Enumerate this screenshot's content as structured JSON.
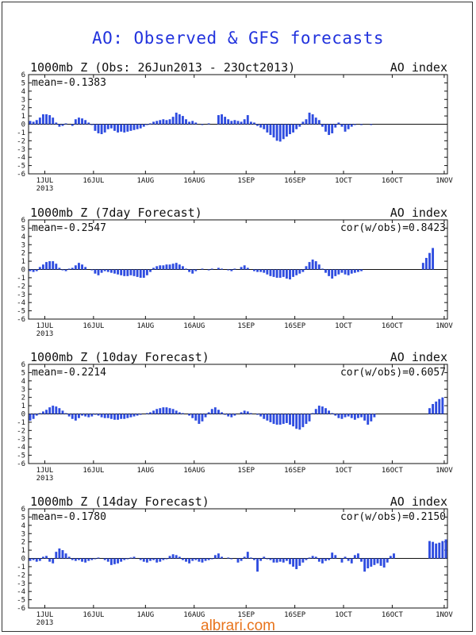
{
  "title": "AO: Observed & GFS forecasts",
  "watermark": "albrari.com",
  "chart_data": [
    {
      "type": "bar",
      "title": "1000mb Z (Obs: 26Jun2013 - 23Oct2013)",
      "index_label": "AO index",
      "mean_label": "mean=-0.1383",
      "cor_label": "",
      "ylim": [
        -6,
        6
      ],
      "yticks": [
        6,
        5,
        4,
        3,
        2,
        1,
        0,
        -1,
        -2,
        -3,
        -4,
        -5,
        -6
      ],
      "xlim": [
        0,
        129
      ],
      "xticks": [
        {
          "x": 5,
          "label": "1JUL",
          "sub": "2013"
        },
        {
          "x": 20,
          "label": "16JUL"
        },
        {
          "x": 36,
          "label": "1AUG"
        },
        {
          "x": 51,
          "label": "16AUG"
        },
        {
          "x": 67,
          "label": "1SEP"
        },
        {
          "x": 82,
          "label": "16SEP"
        },
        {
          "x": 97,
          "label": "1OCT"
        },
        {
          "x": 112,
          "label": "16OCT"
        },
        {
          "x": 128,
          "label": "1NOV"
        }
      ],
      "x": [
        0,
        1,
        2,
        3,
        4,
        5,
        6,
        7,
        8,
        9,
        10,
        11,
        12,
        13,
        14,
        15,
        16,
        17,
        18,
        19,
        20,
        21,
        22,
        23,
        24,
        25,
        26,
        27,
        28,
        29,
        30,
        31,
        32,
        33,
        34,
        35,
        36,
        37,
        38,
        39,
        40,
        41,
        42,
        43,
        44,
        45,
        46,
        47,
        48,
        49,
        50,
        51,
        52,
        53,
        54,
        55,
        56,
        57,
        58,
        59,
        60,
        61,
        62,
        63,
        64,
        65,
        66,
        67,
        68,
        69,
        70,
        71,
        72,
        73,
        74,
        75,
        76,
        77,
        78,
        79,
        80,
        81,
        82,
        83,
        84,
        85,
        86,
        87,
        88,
        89,
        90,
        91,
        92,
        93,
        94,
        95,
        96,
        97,
        98,
        99,
        100,
        101,
        102,
        103,
        104,
        105,
        106,
        107,
        108,
        109,
        110,
        111,
        112,
        113,
        114,
        115,
        116,
        117
      ],
      "values": [
        0.4,
        0.3,
        0.5,
        0.8,
        1.2,
        1.2,
        1.1,
        0.8,
        0.2,
        -0.3,
        -0.2,
        0.1,
        0.0,
        -0.2,
        0.6,
        0.8,
        0.7,
        0.5,
        0.2,
        -0.1,
        -0.8,
        -1.1,
        -1.2,
        -1.0,
        -0.6,
        -0.5,
        -0.8,
        -1.0,
        -0.9,
        -1.0,
        -0.9,
        -0.8,
        -0.7,
        -0.6,
        -0.5,
        -0.3,
        -0.1,
        0.1,
        0.3,
        0.4,
        0.5,
        0.6,
        0.5,
        0.6,
        0.9,
        1.4,
        1.2,
        1.0,
        0.6,
        0.3,
        0.4,
        0.2,
        0.0,
        -0.1,
        0.0,
        0.1,
        0.0,
        0.0,
        1.1,
        1.2,
        0.9,
        0.6,
        0.4,
        0.5,
        0.4,
        0.3,
        0.6,
        1.1,
        0.3,
        0.2,
        -0.2,
        -0.4,
        -0.6,
        -1.0,
        -1.3,
        -1.6,
        -2.0,
        -2.1,
        -1.8,
        -1.5,
        -1.2,
        -1.0,
        -0.6,
        -0.3,
        0.3,
        0.6,
        1.4,
        1.2,
        0.8,
        0.5,
        -0.3,
        -0.9,
        -1.3,
        -1.1,
        -0.4,
        0.2,
        -0.3,
        -0.9,
        -0.6,
        -0.3,
        -0.1,
        0.0,
        -0.1,
        0.0,
        0.0,
        -0.1,
        0.0,
        0.0,
        0.0,
        0.0,
        0.0,
        0.0,
        0.0,
        0.0,
        0.0,
        0.0,
        0.0,
        0.0
      ]
    },
    {
      "type": "bar",
      "title": "1000mb Z (7day Forecast)",
      "index_label": "AO index",
      "mean_label": "mean=-0.2547",
      "cor_label": "cor(w/obs)=0.8423",
      "ylim": [
        -6,
        6
      ],
      "yticks": [
        6,
        5,
        4,
        3,
        2,
        1,
        0,
        -1,
        -2,
        -3,
        -4,
        -5,
        -6
      ],
      "xlim": [
        0,
        129
      ],
      "xticks": [
        {
          "x": 5,
          "label": "1JUL",
          "sub": "2013"
        },
        {
          "x": 20,
          "label": "16JUL"
        },
        {
          "x": 36,
          "label": "1AUG"
        },
        {
          "x": 51,
          "label": "16AUG"
        },
        {
          "x": 67,
          "label": "1SEP"
        },
        {
          "x": 82,
          "label": "16SEP"
        },
        {
          "x": 97,
          "label": "1OCT"
        },
        {
          "x": 112,
          "label": "16OCT"
        },
        {
          "x": 128,
          "label": "1NOV"
        }
      ],
      "x": [
        0,
        1,
        2,
        3,
        4,
        5,
        6,
        7,
        8,
        9,
        10,
        11,
        12,
        13,
        14,
        15,
        16,
        17,
        18,
        19,
        20,
        21,
        22,
        23,
        24,
        25,
        26,
        27,
        28,
        29,
        30,
        31,
        32,
        33,
        34,
        35,
        36,
        37,
        38,
        39,
        40,
        41,
        42,
        43,
        44,
        45,
        46,
        47,
        48,
        49,
        50,
        51,
        52,
        53,
        54,
        55,
        56,
        57,
        58,
        59,
        60,
        61,
        62,
        63,
        64,
        65,
        66,
        67,
        68,
        69,
        70,
        71,
        72,
        73,
        74,
        75,
        76,
        77,
        78,
        79,
        80,
        81,
        82,
        83,
        84,
        85,
        86,
        87,
        88,
        89,
        90,
        91,
        92,
        93,
        94,
        95,
        96,
        97,
        98,
        99,
        100,
        101,
        102,
        103,
        104,
        105,
        106,
        107,
        108,
        109,
        110,
        111,
        112,
        113,
        114,
        115,
        116,
        117,
        118,
        119,
        120,
        121,
        122,
        123,
        124
      ],
      "values": [
        -0.2,
        -0.3,
        -0.2,
        0.3,
        0.6,
        0.9,
        1.0,
        1.0,
        0.7,
        0.2,
        -0.1,
        -0.2,
        0.1,
        0.2,
        0.5,
        0.8,
        0.6,
        0.3,
        0.0,
        -0.1,
        -0.5,
        -0.7,
        -0.4,
        -0.2,
        -0.3,
        -0.4,
        -0.5,
        -0.6,
        -0.7,
        -0.8,
        -0.8,
        -0.7,
        -0.8,
        -0.9,
        -1.0,
        -1.0,
        -0.7,
        -0.3,
        0.2,
        0.4,
        0.5,
        0.5,
        0.6,
        0.6,
        0.7,
        0.8,
        0.6,
        0.4,
        0.1,
        -0.3,
        -0.5,
        -0.2,
        0.0,
        0.1,
        0.0,
        -0.1,
        0.1,
        0.0,
        0.2,
        0.1,
        0.0,
        -0.1,
        -0.2,
        0.1,
        0.0,
        0.3,
        0.5,
        0.2,
        0.0,
        -0.2,
        -0.3,
        -0.3,
        -0.4,
        -0.6,
        -0.8,
        -0.9,
        -1.0,
        -1.0,
        -0.9,
        -1.1,
        -1.2,
        -0.9,
        -0.7,
        -0.5,
        -0.3,
        0.4,
        0.9,
        1.2,
        1.0,
        0.6,
        0.1,
        -0.4,
        -0.8,
        -1.1,
        -0.8,
        -0.6,
        -0.4,
        -0.6,
        -0.7,
        -0.5,
        -0.4,
        -0.3,
        -0.2,
        0.0,
        0.0,
        0.0,
        0.0,
        0.0,
        0.0,
        0.0,
        0.0,
        0.0,
        0.0,
        0.0,
        0.0,
        0.0,
        0.0,
        0.0,
        0.0,
        0.0,
        0.0,
        0.8,
        1.4,
        2.0,
        2.6
      ]
    },
    {
      "type": "bar",
      "title": "1000mb Z (10day Forecast)",
      "index_label": "AO index",
      "mean_label": "mean=-0.2214",
      "cor_label": "cor(w/obs)=0.6057",
      "ylim": [
        -6,
        6
      ],
      "yticks": [
        6,
        5,
        4,
        3,
        2,
        1,
        0,
        -1,
        -2,
        -3,
        -4,
        -5,
        -6
      ],
      "xlim": [
        0,
        129
      ],
      "xticks": [
        {
          "x": 5,
          "label": "1JUL",
          "sub": "2013"
        },
        {
          "x": 20,
          "label": "16JUL"
        },
        {
          "x": 36,
          "label": "1AUG"
        },
        {
          "x": 51,
          "label": "16AUG"
        },
        {
          "x": 67,
          "label": "1SEP"
        },
        {
          "x": 82,
          "label": "16SEP"
        },
        {
          "x": 97,
          "label": "1OCT"
        },
        {
          "x": 112,
          "label": "16OCT"
        },
        {
          "x": 128,
          "label": "1NOV"
        }
      ],
      "x": [
        0,
        1,
        2,
        3,
        4,
        5,
        6,
        7,
        8,
        9,
        10,
        11,
        12,
        13,
        14,
        15,
        16,
        17,
        18,
        19,
        20,
        21,
        22,
        23,
        24,
        25,
        26,
        27,
        28,
        29,
        30,
        31,
        32,
        33,
        34,
        35,
        36,
        37,
        38,
        39,
        40,
        41,
        42,
        43,
        44,
        45,
        46,
        47,
        48,
        49,
        50,
        51,
        52,
        53,
        54,
        55,
        56,
        57,
        58,
        59,
        60,
        61,
        62,
        63,
        64,
        65,
        66,
        67,
        68,
        69,
        70,
        71,
        72,
        73,
        74,
        75,
        76,
        77,
        78,
        79,
        80,
        81,
        82,
        83,
        84,
        85,
        86,
        87,
        88,
        89,
        90,
        91,
        92,
        93,
        94,
        95,
        96,
        97,
        98,
        99,
        100,
        101,
        102,
        103,
        104,
        105,
        106,
        107,
        108,
        109,
        110,
        111,
        112,
        113,
        114,
        115,
        116,
        117,
        118,
        119,
        120,
        121,
        122,
        123,
        124,
        125,
        126,
        127
      ],
      "values": [
        -0.8,
        -0.6,
        -0.2,
        0.1,
        0.3,
        0.5,
        0.8,
        1.0,
        0.9,
        0.7,
        0.4,
        0.1,
        -0.3,
        -0.6,
        -0.8,
        -0.5,
        -0.2,
        -0.3,
        -0.4,
        -0.3,
        -0.1,
        -0.2,
        -0.4,
        -0.5,
        -0.5,
        -0.6,
        -0.7,
        -0.7,
        -0.6,
        -0.6,
        -0.5,
        -0.4,
        -0.3,
        -0.2,
        -0.1,
        0.0,
        0.1,
        0.2,
        0.4,
        0.6,
        0.7,
        0.8,
        0.8,
        0.7,
        0.6,
        0.4,
        0.2,
        0.1,
        0.0,
        -0.2,
        -0.5,
        -0.8,
        -1.2,
        -0.9,
        -0.4,
        0.2,
        0.6,
        0.8,
        0.5,
        0.2,
        -0.1,
        -0.3,
        -0.4,
        -0.2,
        0.0,
        0.2,
        0.4,
        0.3,
        0.1,
        0.0,
        -0.1,
        -0.3,
        -0.6,
        -0.8,
        -1.0,
        -1.2,
        -1.3,
        -1.3,
        -1.2,
        -1.1,
        -1.3,
        -1.5,
        -1.8,
        -1.9,
        -1.6,
        -1.2,
        -0.9,
        0.1,
        0.6,
        1.0,
        0.9,
        0.7,
        0.4,
        0.1,
        -0.2,
        -0.5,
        -0.6,
        -0.4,
        -0.3,
        -0.5,
        -0.7,
        -0.5,
        -0.4,
        -0.8,
        -1.3,
        -0.9,
        -0.4,
        0.0,
        0.0,
        0.0,
        0.0,
        0.0,
        0.0,
        0.0,
        0.0,
        0.0,
        0.0,
        0.0,
        0.0,
        0.0,
        0.0,
        0.0,
        0.0,
        0.7,
        1.2,
        1.5,
        1.8,
        2.0
      ]
    },
    {
      "type": "bar",
      "title": "1000mb Z (14day Forecast)",
      "index_label": "AO index",
      "mean_label": "mean=-0.1780",
      "cor_label": "cor(w/obs)=0.2150",
      "ylim": [
        -6,
        6
      ],
      "yticks": [
        6,
        5,
        4,
        3,
        2,
        1,
        0,
        -1,
        -2,
        -3,
        -4,
        -5,
        -6
      ],
      "xlim": [
        0,
        129
      ],
      "xticks": [
        {
          "x": 5,
          "label": "1JUL",
          "sub": "2013"
        },
        {
          "x": 20,
          "label": "16JUL"
        },
        {
          "x": 36,
          "label": "1AUG"
        },
        {
          "x": 51,
          "label": "16AUG"
        },
        {
          "x": 67,
          "label": "1SEP"
        },
        {
          "x": 82,
          "label": "16SEP"
        },
        {
          "x": 97,
          "label": "1OCT"
        },
        {
          "x": 112,
          "label": "16OCT"
        },
        {
          "x": 128,
          "label": "1NOV"
        }
      ],
      "x": [
        0,
        1,
        2,
        3,
        4,
        5,
        6,
        7,
        8,
        9,
        10,
        11,
        12,
        13,
        14,
        15,
        16,
        17,
        18,
        19,
        20,
        21,
        22,
        23,
        24,
        25,
        26,
        27,
        28,
        29,
        30,
        31,
        32,
        33,
        34,
        35,
        36,
        37,
        38,
        39,
        40,
        41,
        42,
        43,
        44,
        45,
        46,
        47,
        48,
        49,
        50,
        51,
        52,
        53,
        54,
        55,
        56,
        57,
        58,
        59,
        60,
        61,
        62,
        63,
        64,
        65,
        66,
        67,
        68,
        69,
        70,
        71,
        72,
        73,
        74,
        75,
        76,
        77,
        78,
        79,
        80,
        81,
        82,
        83,
        84,
        85,
        86,
        87,
        88,
        89,
        90,
        91,
        92,
        93,
        94,
        95,
        96,
        97,
        98,
        99,
        100,
        101,
        102,
        103,
        104,
        105,
        106,
        107,
        108,
        109,
        110,
        111,
        112,
        113,
        114,
        115,
        116,
        117,
        118,
        119,
        120,
        121,
        122,
        123,
        124,
        125,
        126,
        127,
        128
      ],
      "values": [
        -0.3,
        -0.2,
        -0.4,
        -0.3,
        0.2,
        0.3,
        -0.4,
        -0.6,
        0.8,
        1.2,
        1.0,
        0.6,
        0.2,
        -0.2,
        -0.3,
        -0.2,
        -0.4,
        -0.5,
        -0.3,
        -0.2,
        -0.1,
        0.1,
        0.0,
        -0.2,
        -0.4,
        -0.8,
        -0.7,
        -0.6,
        -0.4,
        -0.2,
        -0.1,
        0.1,
        0.2,
        0.0,
        -0.2,
        -0.4,
        -0.5,
        -0.3,
        -0.2,
        -0.5,
        -0.4,
        -0.2,
        -0.1,
        0.3,
        0.5,
        0.4,
        0.2,
        -0.2,
        -0.4,
        -0.6,
        -0.3,
        -0.2,
        -0.4,
        -0.5,
        -0.3,
        -0.2,
        -0.1,
        0.4,
        0.6,
        0.2,
        0.0,
        0.1,
        -0.1,
        0.0,
        -0.5,
        -0.3,
        0.2,
        0.8,
        0.1,
        -0.2,
        -1.6,
        -0.3,
        0.2,
        -0.1,
        -0.2,
        -0.5,
        -0.5,
        -0.4,
        -0.5,
        -0.3,
        -0.7,
        -1.0,
        -1.3,
        -0.9,
        -0.5,
        -0.2,
        0.1,
        0.3,
        0.2,
        -0.4,
        -0.6,
        -0.3,
        -0.2,
        0.7,
        0.4,
        0.0,
        -0.5,
        0.2,
        -0.3,
        -0.6,
        0.4,
        0.6,
        -0.4,
        -1.6,
        -1.2,
        -1.0,
        -0.8,
        -0.6,
        -0.9,
        -1.1,
        -0.5,
        0.3,
        0.6,
        0.0,
        0.0,
        0.0,
        0.0,
        0.0,
        0.0,
        0.0,
        0.0,
        0.0,
        0.0,
        2.1,
        2.0,
        1.8,
        1.9,
        2.1,
        2.3
      ]
    }
  ]
}
